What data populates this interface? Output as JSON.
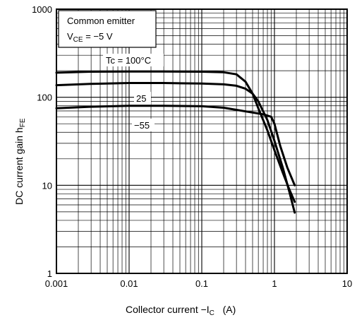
{
  "chart_data": {
    "type": "line",
    "x_scale": "log",
    "y_scale": "log",
    "xlim": [
      0.001,
      10
    ],
    "ylim": [
      1,
      1000
    ],
    "grid": true,
    "xlabel": {
      "main": "Collector current   −I",
      "sub": "C",
      "unit": "   (A)"
    },
    "ylabel": {
      "main": "DC current gain   h",
      "sub": "FE"
    },
    "x_ticks": [
      "0.001",
      "0.01",
      "0.1",
      "1",
      "10"
    ],
    "y_ticks": [
      "1",
      "10",
      "100",
      "1000"
    ],
    "annotation": {
      "line1": "Common emitter",
      "line2_main": "V",
      "line2_sub": "CE",
      "line2_rest": " = −5 V"
    },
    "series": [
      {
        "name": "Tc = 100°C",
        "label": "Tc = 100°C",
        "x": [
          0.001,
          0.003,
          0.01,
          0.03,
          0.1,
          0.2,
          0.3,
          0.4,
          0.5,
          0.6,
          0.8,
          1.0,
          1.3,
          1.6,
          1.9
        ],
        "y": [
          190,
          195,
          196,
          196,
          195,
          192,
          182,
          150,
          110,
          75,
          42,
          25,
          14,
          9,
          6.5
        ]
      },
      {
        "name": "25",
        "label": "25",
        "x": [
          0.001,
          0.003,
          0.01,
          0.03,
          0.1,
          0.2,
          0.3,
          0.4,
          0.5,
          0.6,
          0.8,
          1.0,
          1.3,
          1.6,
          1.9
        ],
        "y": [
          137,
          142,
          145,
          145,
          143,
          140,
          135,
          125,
          110,
          90,
          55,
          32,
          16,
          8.5,
          4.9
        ]
      },
      {
        "name": "−55",
        "label": "−55",
        "x": [
          0.001,
          0.003,
          0.01,
          0.03,
          0.1,
          0.2,
          0.3,
          0.5,
          0.7,
          0.9,
          1.0,
          1.2,
          1.5,
          1.9
        ],
        "y": [
          75,
          78,
          80,
          80,
          79,
          76,
          72,
          67,
          64,
          60,
          50,
          28,
          16,
          10
        ]
      }
    ]
  }
}
